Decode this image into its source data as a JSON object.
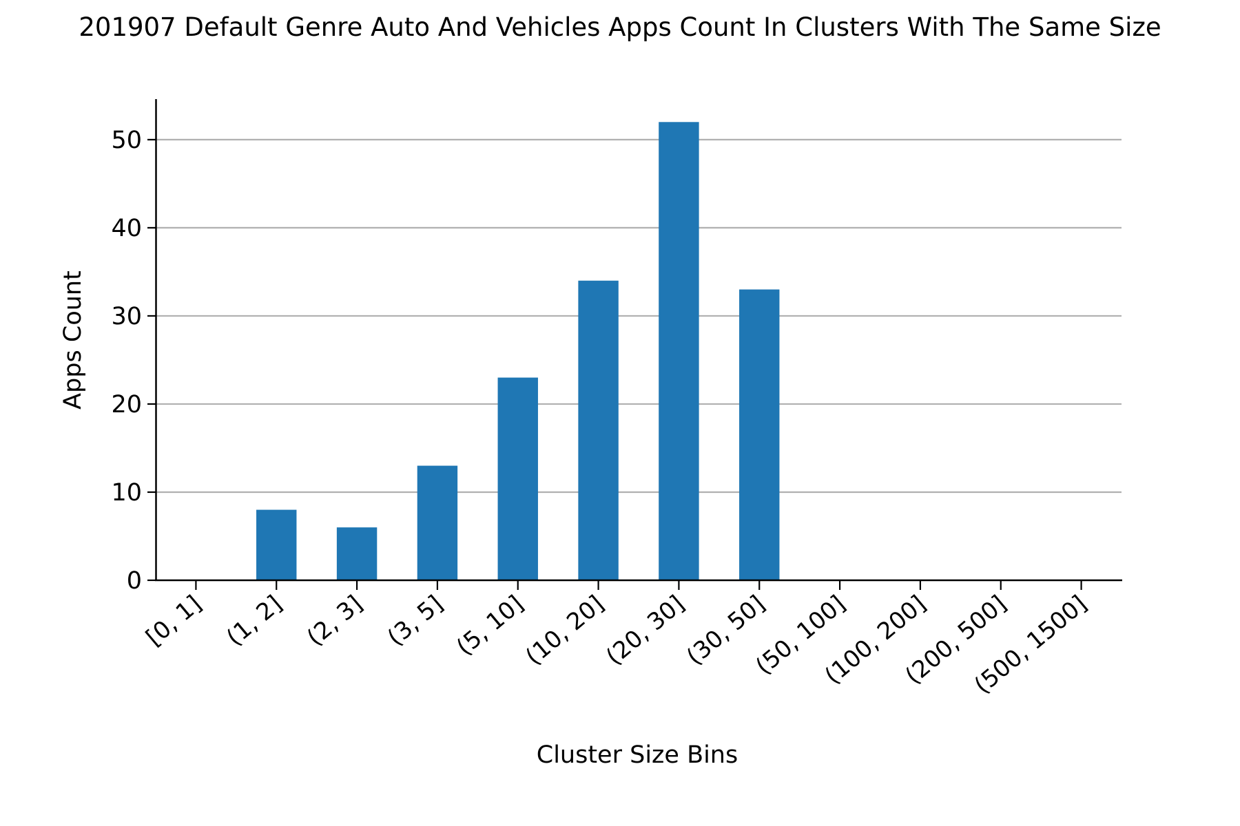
{
  "chart_data": {
    "type": "bar",
    "title": "201907 Default Genre Auto And Vehicles Apps Count In Clusters With The Same Size",
    "xlabel": "Cluster Size Bins",
    "ylabel": "Apps Count",
    "categories": [
      "[0, 1]",
      "(1, 2]",
      "(2, 3]",
      "(3, 5]",
      "(5, 10]",
      "(10, 20]",
      "(20, 30]",
      "(30, 50]",
      "(50, 100]",
      "(100, 200]",
      "(200, 500]",
      "(500, 1500]"
    ],
    "values": [
      0,
      8,
      6,
      13,
      23,
      34,
      52,
      33,
      0,
      0,
      0,
      0
    ],
    "ylim": [
      0,
      54.6
    ],
    "yticks": [
      0,
      10,
      20,
      30,
      40,
      50
    ],
    "grid": "y",
    "legend": "none",
    "colors": {
      "bar": "#1f77b4",
      "grid": "#b0b0b0",
      "axis": "#000000"
    }
  }
}
